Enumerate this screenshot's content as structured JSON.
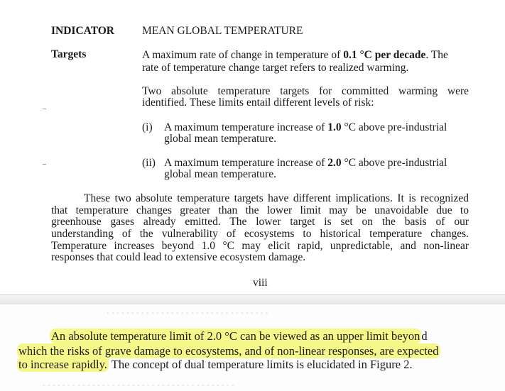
{
  "header": {
    "indicator_label": "INDICATOR",
    "indicator_value": "MEAN GLOBAL TEMPERATURE"
  },
  "targets": {
    "label": "Targets",
    "rate": {
      "line1_prefix": "A maximum rate of change in temperature of ",
      "line1_bold": "0.1 °C per decade",
      "line1_suffix": ". The",
      "line2": "rate of temperature change target refers to realized warming."
    },
    "absolute": {
      "line1": "Two absolute temperature targets for committed warming were",
      "line2": "identified. These limits entail different levels of risk:"
    },
    "items": [
      {
        "number": "(i)",
        "line1_prefix": "A maximum temperature increase of ",
        "line1_bold": "1.0",
        "line1_suffix": " °C above pre-industrial",
        "line2": "global mean temperature."
      },
      {
        "number": "(ii)",
        "line1_prefix": "A maximum temperature increase of ",
        "line1_bold": "2.0",
        "line1_suffix": " °C above pre-industrial",
        "line2": "global mean temperature."
      }
    ]
  },
  "implications": {
    "lines": [
      "These two absolute temperature targets have different implications. It is recognized",
      "that temperature changes greater than the lower limit may be unavoidable due to",
      "greenhouse gases already emitted. The lower target is set on the basis of our",
      "understanding of the vulnerability of ecosystems to historical temperature changes.",
      "Temperature increases beyond 1.0 °C may elicit rapid, unpredictable, and non-linear",
      "responses that could lead to extensive ecosystem damage."
    ]
  },
  "page_number": "viii",
  "bottom": {
    "line1_highlighted": "An absolute temperature limit of 2.0 °C can be viewed as an upper limit beyon",
    "line1_rest": "d",
    "line2_highlighted": "which the risks of grave damage to ecosystems, and of non-linear responses, are expected",
    "line3_highlighted": "to increase rapidly.",
    "line3_rest": " The concept of dual temperature limits is elucidated in Figure 2.",
    "highlight_color": "#f6f78a"
  }
}
